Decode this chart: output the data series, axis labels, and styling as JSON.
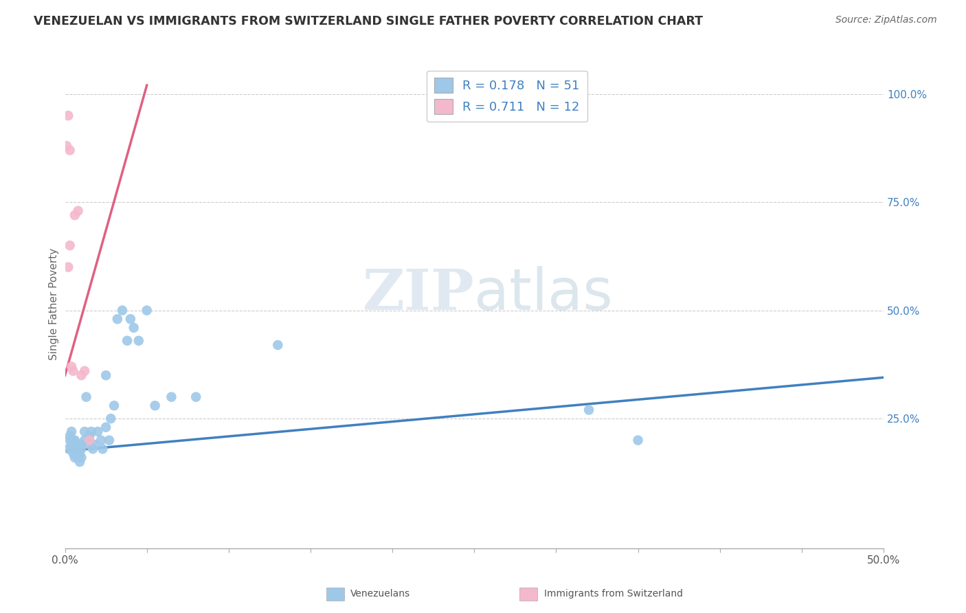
{
  "title": "VENEZUELAN VS IMMIGRANTS FROM SWITZERLAND SINGLE FATHER POVERTY CORRELATION CHART",
  "source": "Source: ZipAtlas.com",
  "ylabel": "Single Father Poverty",
  "xlim": [
    0.0,
    0.5
  ],
  "ylim": [
    -0.05,
    1.08
  ],
  "x_tick_positions": [
    0.0,
    0.05,
    0.1,
    0.15,
    0.2,
    0.25,
    0.3,
    0.35,
    0.4,
    0.45,
    0.5
  ],
  "x_tick_labels": [
    "0.0%",
    "",
    "",
    "",
    "",
    "",
    "",
    "",
    "",
    "",
    "50.0%"
  ],
  "y_ticks_right": [
    0.25,
    0.5,
    0.75,
    1.0
  ],
  "y_tick_labels_right": [
    "25.0%",
    "50.0%",
    "75.0%",
    "100.0%"
  ],
  "blue_R": 0.178,
  "blue_N": 51,
  "pink_R": 0.711,
  "pink_N": 12,
  "blue_color": "#9ec8e8",
  "pink_color": "#f4b8cc",
  "blue_line_color": "#4080c0",
  "pink_line_color": "#e06080",
  "legend_blue_label": "Venezuelans",
  "legend_pink_label": "Immigrants from Switzerland",
  "watermark_zip": "ZIP",
  "watermark_atlas": "atlas",
  "blue_scatter_x": [
    0.002,
    0.003,
    0.003,
    0.004,
    0.004,
    0.004,
    0.005,
    0.005,
    0.005,
    0.005,
    0.006,
    0.006,
    0.006,
    0.007,
    0.007,
    0.008,
    0.008,
    0.009,
    0.009,
    0.01,
    0.01,
    0.01,
    0.012,
    0.012,
    0.013,
    0.015,
    0.015,
    0.016,
    0.017,
    0.018,
    0.02,
    0.022,
    0.023,
    0.025,
    0.025,
    0.027,
    0.028,
    0.03,
    0.032,
    0.035,
    0.038,
    0.04,
    0.042,
    0.045,
    0.05,
    0.055,
    0.065,
    0.08,
    0.13,
    0.32,
    0.35
  ],
  "blue_scatter_y": [
    0.18,
    0.2,
    0.21,
    0.18,
    0.19,
    0.22,
    0.17,
    0.18,
    0.19,
    0.2,
    0.16,
    0.18,
    0.2,
    0.17,
    0.19,
    0.16,
    0.18,
    0.15,
    0.17,
    0.16,
    0.18,
    0.19,
    0.2,
    0.22,
    0.3,
    0.19,
    0.21,
    0.22,
    0.18,
    0.19,
    0.22,
    0.2,
    0.18,
    0.23,
    0.35,
    0.2,
    0.25,
    0.28,
    0.48,
    0.5,
    0.43,
    0.48,
    0.46,
    0.43,
    0.5,
    0.28,
    0.3,
    0.3,
    0.42,
    0.27,
    0.2
  ],
  "pink_scatter_x": [
    0.001,
    0.002,
    0.002,
    0.003,
    0.003,
    0.004,
    0.005,
    0.006,
    0.008,
    0.01,
    0.012,
    0.015
  ],
  "pink_scatter_y": [
    0.88,
    0.95,
    0.6,
    0.87,
    0.65,
    0.37,
    0.36,
    0.72,
    0.73,
    0.35,
    0.36,
    0.2
  ],
  "blue_line_x0": 0.0,
  "blue_line_x1": 0.5,
  "blue_line_y0": 0.175,
  "blue_line_y1": 0.345,
  "pink_line_x0": 0.0,
  "pink_line_x1": 0.05,
  "pink_line_y0": 0.35,
  "pink_line_y1": 1.02
}
